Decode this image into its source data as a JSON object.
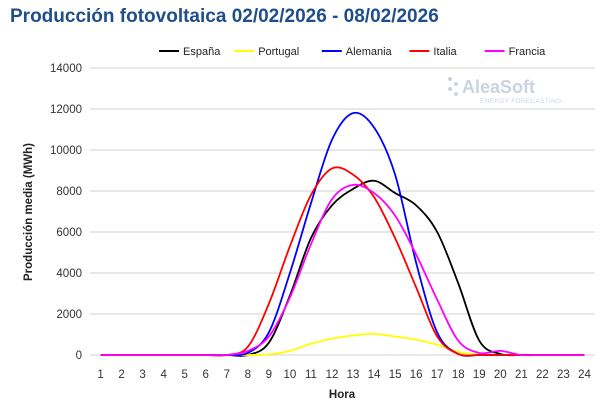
{
  "title": "Producción fotovoltaica 02/02/2026 - 08/02/2026",
  "watermark": {
    "name": "AleaSoft",
    "tagline": "ENERGY FORECASTING"
  },
  "chart_data": {
    "type": "line",
    "title": "Producción fotovoltaica 02/02/2026 - 08/02/2026",
    "xlabel": "Hora",
    "ylabel": "Producción media (MWh)",
    "x": [
      1,
      2,
      3,
      4,
      5,
      6,
      7,
      8,
      9,
      10,
      11,
      12,
      13,
      14,
      15,
      16,
      17,
      18,
      19,
      20,
      21,
      22,
      23,
      24
    ],
    "ylim": [
      0,
      14000
    ],
    "yticks": [
      0,
      2000,
      4000,
      6000,
      8000,
      10000,
      12000,
      14000
    ],
    "grid": true,
    "legend_position": "top",
    "series": [
      {
        "name": "España",
        "color": "#000000",
        "values": [
          0,
          0,
          0,
          0,
          0,
          0,
          0,
          0,
          600,
          2900,
          5700,
          7300,
          8100,
          8500,
          7900,
          7300,
          6000,
          3500,
          700,
          50,
          0,
          0,
          0,
          0
        ]
      },
      {
        "name": "Portugal",
        "color": "#ffff00",
        "values": [
          0,
          0,
          0,
          0,
          0,
          0,
          0,
          0,
          30,
          200,
          550,
          800,
          950,
          1030,
          900,
          750,
          500,
          150,
          10,
          0,
          0,
          0,
          0,
          0
        ]
      },
      {
        "name": "Alemania",
        "color": "#0000ff",
        "values": [
          0,
          0,
          0,
          0,
          0,
          0,
          0,
          100,
          1100,
          4000,
          7400,
          10500,
          11800,
          11100,
          8800,
          4500,
          1100,
          50,
          0,
          0,
          0,
          0,
          0,
          0
        ]
      },
      {
        "name": "Italia",
        "color": "#ff0000",
        "values": [
          0,
          0,
          0,
          0,
          0,
          0,
          0,
          400,
          2500,
          5300,
          7800,
          9100,
          8800,
          7700,
          5700,
          3300,
          900,
          50,
          0,
          0,
          0,
          0,
          0,
          0
        ]
      },
      {
        "name": "Francia",
        "color": "#ff00ff",
        "values": [
          0,
          0,
          0,
          0,
          0,
          0,
          0,
          200,
          900,
          2800,
          5400,
          7600,
          8300,
          7900,
          6800,
          4900,
          2700,
          700,
          100,
          200,
          0,
          0,
          0,
          0
        ]
      }
    ]
  }
}
